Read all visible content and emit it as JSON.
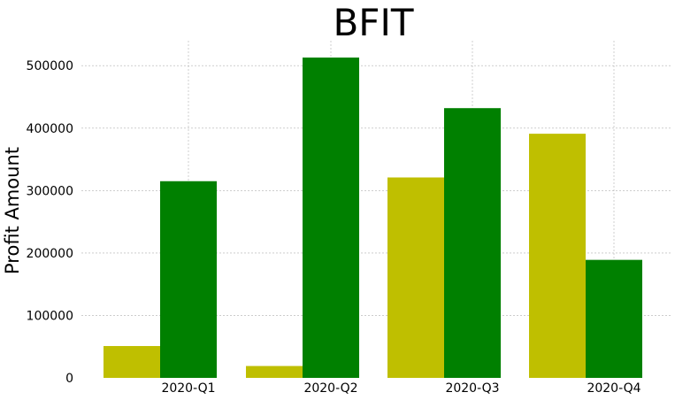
{
  "chart_data": {
    "type": "bar",
    "title": "BFIT",
    "xlabel": "",
    "ylabel": "Profit Amount",
    "categories": [
      "2020-Q1",
      "2020-Q2",
      "2020-Q3",
      "2020-Q4"
    ],
    "series": [
      {
        "values": [
          51000,
          19000,
          321000,
          391000
        ]
      },
      {
        "values": [
          315000,
          513000,
          432000,
          189000
        ]
      }
    ],
    "ylim": [
      0,
      540000
    ],
    "yticks": [
      0,
      100000,
      200000,
      300000,
      400000,
      500000
    ],
    "grid": true
  },
  "colors": {
    "series_1": "#bfbf00",
    "series_2": "#008000",
    "grid": "#b0b0b0"
  }
}
